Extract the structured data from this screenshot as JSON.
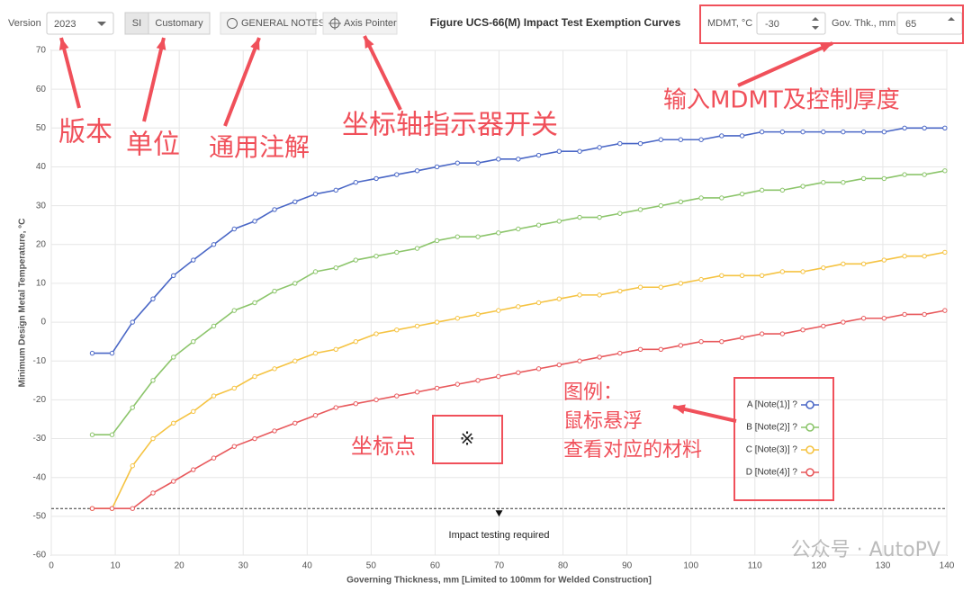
{
  "toolbar": {
    "version_label": "Version",
    "version": "2023",
    "units": [
      "SI",
      "Customary"
    ],
    "general_notes": "GENERAL NOTES",
    "axis_pointer": "Axis Pointer",
    "mdmt_label": "MDMT, °C",
    "mdmt": "-30",
    "thk_label": "Gov. Thk., mm",
    "thk": "65"
  },
  "annotations": [
    "版本",
    "单位",
    "通用注解",
    "坐标轴指示器开关",
    "输入MDMT及控制厚度",
    "坐标点",
    "※",
    "图例：",
    "鼠标悬浮",
    "查看对应的材料"
  ],
  "watermark": "公众号 · AutoPV",
  "chart_data": {
    "type": "line",
    "title": "Figure UCS-66(M) Impact Test Exemption Curves",
    "xlabel": "Governing Thickness, mm [Limited to 100mm for Welded Construction]",
    "ylabel": "Minimum Design Metal Temperature, °C",
    "x": [
      6.4,
      9.5,
      12.7,
      15.9,
      19.1,
      22.2,
      25.4,
      28.6,
      31.8,
      34.9,
      38.1,
      41.3,
      44.5,
      47.6,
      50.8,
      54,
      57.2,
      60.3,
      63.5,
      66.7,
      69.9,
      73,
      76.2,
      79.4,
      82.6,
      85.7,
      88.9,
      92.1,
      95.3,
      98.4,
      101.6,
      104.8,
      108,
      111.1,
      114.3,
      117.5,
      120.7,
      123.8,
      127,
      130.2,
      133.4,
      136.5,
      139.7
    ],
    "series": [
      {
        "name": "A [Note(1)] ?",
        "color": "#4a67c6",
        "values": [
          -8,
          -8,
          0,
          6,
          12,
          16,
          20,
          24,
          26,
          29,
          31,
          33,
          34,
          36,
          37,
          38,
          39,
          40,
          41,
          41,
          42,
          42,
          43,
          44,
          44,
          45,
          46,
          46,
          47,
          47,
          47,
          48,
          48,
          49,
          49,
          49,
          49,
          49,
          49,
          49,
          50,
          50,
          50
        ]
      },
      {
        "name": "B [Note(2)] ?",
        "color": "#8cc56b",
        "values": [
          -29,
          -29,
          -22,
          -15,
          -9,
          -5,
          -1,
          3,
          5,
          8,
          10,
          13,
          14,
          16,
          17,
          18,
          19,
          21,
          22,
          22,
          23,
          24,
          25,
          26,
          27,
          27,
          28,
          29,
          30,
          31,
          32,
          32,
          33,
          34,
          34,
          35,
          36,
          36,
          37,
          37,
          38,
          38,
          39
        ]
      },
      {
        "name": "C [Note(3)] ?",
        "color": "#f5c342",
        "values": [
          -48,
          -48,
          -37,
          -30,
          -26,
          -23,
          -19,
          -17,
          -14,
          -12,
          -10,
          -8,
          -7,
          -5,
          -3,
          -2,
          -1,
          0,
          1,
          2,
          3,
          4,
          5,
          6,
          7,
          7,
          8,
          9,
          9,
          10,
          11,
          12,
          12,
          12,
          13,
          13,
          14,
          15,
          15,
          16,
          17,
          17,
          18
        ]
      },
      {
        "name": "D [Note(4)] ?",
        "color": "#e8595c",
        "values": [
          -48,
          -48,
          -48,
          -44,
          -41,
          -38,
          -35,
          -32,
          -30,
          -28,
          -26,
          -24,
          -22,
          -21,
          -20,
          -19,
          -18,
          -17,
          -16,
          -15,
          -14,
          -13,
          -12,
          -11,
          -10,
          -9,
          -8,
          -7,
          -7,
          -6,
          -5,
          -5,
          -4,
          -3,
          -3,
          -2,
          -1,
          0,
          1,
          1,
          2,
          2,
          3
        ]
      }
    ],
    "xlim": [
      0,
      140
    ],
    "xticks": [
      0,
      10,
      20,
      30,
      40,
      50,
      60,
      70,
      80,
      90,
      100,
      110,
      120,
      130,
      140
    ],
    "ylim": [
      -60,
      70
    ],
    "yticks": [
      -60,
      -50,
      -40,
      -30,
      -20,
      -10,
      0,
      10,
      20,
      30,
      40,
      50,
      60,
      70
    ],
    "grid": true,
    "threshold": -48,
    "threshold_label": "Impact testing required"
  }
}
